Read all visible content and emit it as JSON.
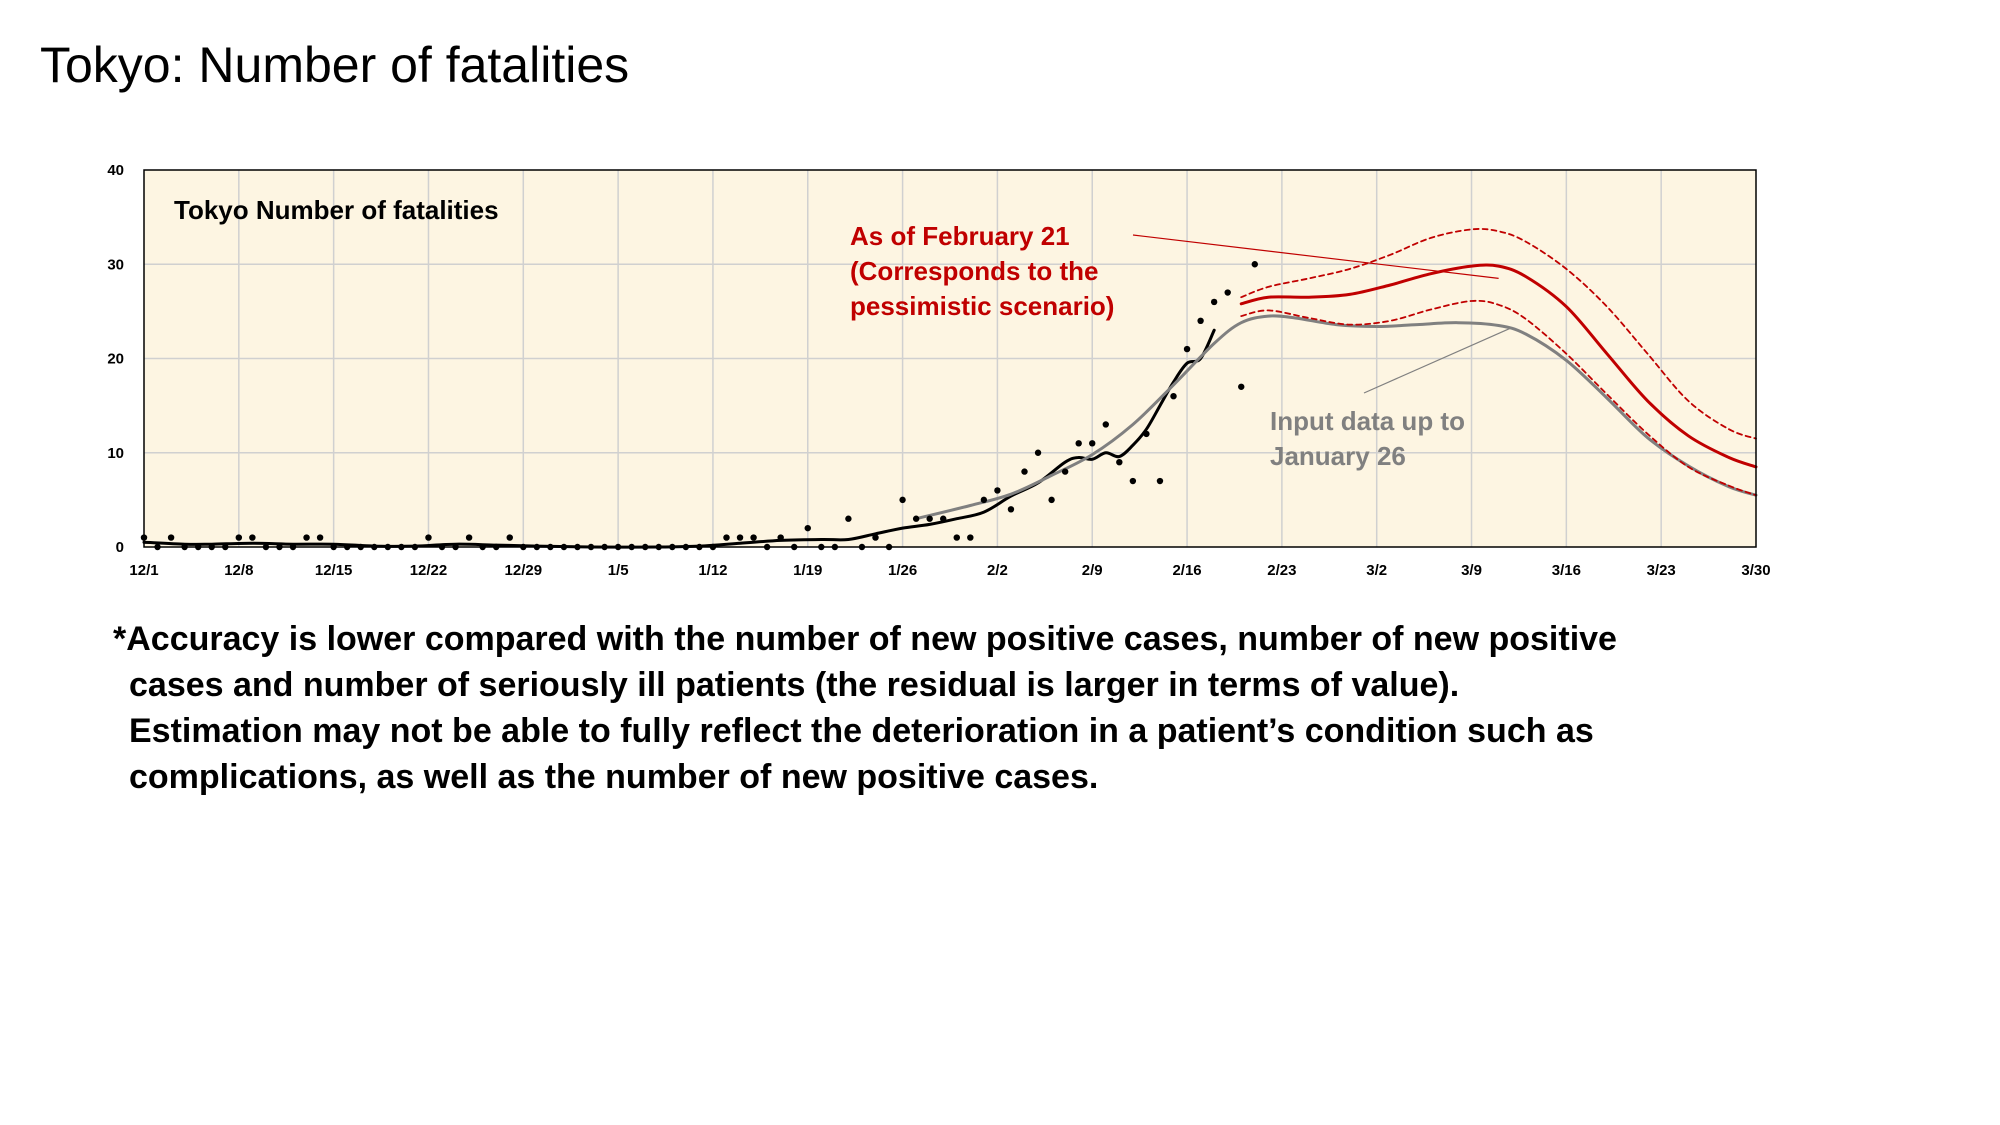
{
  "slide": {
    "title": "Tokyo: Number of fatalities",
    "note_lines": [
      "*Accuracy is lower compared with the number of new positive cases, number of new positive",
      "cases and number of seriously ill patients (the residual is larger in terms of value).",
      "Estimation may not be able to fully reflect the deterioration in a patient’s condition such as",
      "complications, as well as the number of new positive cases."
    ]
  },
  "colors": {
    "plot_background": "#fdf5e2",
    "grid": "#d0d0d0",
    "observed_points": "#000000",
    "moving_average": "#000000",
    "fit_jan26": "#808080",
    "feb21_projection": "#c00000"
  },
  "chart_data": {
    "type": "line",
    "title": "Tokyo  Number of fatalities",
    "xlabel": "",
    "ylabel": "",
    "x_range": [
      "2020-12-01",
      "2021-03-30"
    ],
    "ylim": [
      0,
      40
    ],
    "y_ticks": [
      0,
      10,
      20,
      30,
      40
    ],
    "x_tick_labels": [
      "12/1",
      "12/8",
      "12/15",
      "12/22",
      "12/29",
      "1/5",
      "1/12",
      "1/19",
      "1/26",
      "2/2",
      "2/9",
      "2/16",
      "2/23",
      "3/2",
      "3/9",
      "3/16",
      "3/23",
      "3/30"
    ],
    "grid": true,
    "annotations": [
      {
        "text_lines": [
          "As of  February 21",
          "(Corresponds to the",
          "pessimistic scenario)"
        ],
        "color": "#c00000",
        "points_to": {
          "x": "2021-03-11",
          "y": 28.5
        }
      },
      {
        "text_lines": [
          "Input data up to",
          "January 26"
        ],
        "color": "#808080",
        "points_to": {
          "x": "2021-03-12",
          "y": 23.3
        }
      }
    ],
    "series": [
      {
        "kind": "points",
        "color": "#000000",
        "points": [
          [
            "2020-12-01",
            1
          ],
          [
            "2020-12-02",
            0
          ],
          [
            "2020-12-03",
            1
          ],
          [
            "2020-12-04",
            0
          ],
          [
            "2020-12-05",
            0
          ],
          [
            "2020-12-06",
            0
          ],
          [
            "2020-12-07",
            0
          ],
          [
            "2020-12-08",
            1
          ],
          [
            "2020-12-09",
            1
          ],
          [
            "2020-12-10",
            0
          ],
          [
            "2020-12-11",
            0
          ],
          [
            "2020-12-12",
            0
          ],
          [
            "2020-12-13",
            1
          ],
          [
            "2020-12-14",
            1
          ],
          [
            "2020-12-15",
            0
          ],
          [
            "2020-12-16",
            0
          ],
          [
            "2020-12-17",
            0
          ],
          [
            "2020-12-18",
            0
          ],
          [
            "2020-12-19",
            0
          ],
          [
            "2020-12-20",
            0
          ],
          [
            "2020-12-21",
            0
          ],
          [
            "2020-12-22",
            1
          ],
          [
            "2020-12-23",
            0
          ],
          [
            "2020-12-24",
            0
          ],
          [
            "2020-12-25",
            1
          ],
          [
            "2020-12-26",
            0
          ],
          [
            "2020-12-27",
            0
          ],
          [
            "2020-12-28",
            1
          ],
          [
            "2020-12-29",
            0
          ],
          [
            "2020-12-30",
            0
          ],
          [
            "2020-12-31",
            0
          ],
          [
            "2021-01-01",
            0
          ],
          [
            "2021-01-02",
            0
          ],
          [
            "2021-01-03",
            0
          ],
          [
            "2021-01-04",
            0
          ],
          [
            "2021-01-05",
            0
          ],
          [
            "2021-01-06",
            0
          ],
          [
            "2021-01-07",
            0
          ],
          [
            "2021-01-08",
            0
          ],
          [
            "2021-01-09",
            0
          ],
          [
            "2021-01-10",
            0
          ],
          [
            "2021-01-11",
            0
          ],
          [
            "2021-01-12",
            0
          ],
          [
            "2021-01-13",
            1
          ],
          [
            "2021-01-14",
            1
          ],
          [
            "2021-01-15",
            1
          ],
          [
            "2021-01-16",
            0
          ],
          [
            "2021-01-17",
            1
          ],
          [
            "2021-01-18",
            0
          ],
          [
            "2021-01-19",
            2
          ],
          [
            "2021-01-20",
            0
          ],
          [
            "2021-01-21",
            0
          ],
          [
            "2021-01-22",
            3
          ],
          [
            "2021-01-23",
            0
          ],
          [
            "2021-01-24",
            1
          ],
          [
            "2021-01-25",
            0
          ],
          [
            "2021-01-26",
            5
          ],
          [
            "2021-01-27",
            3
          ],
          [
            "2021-01-28",
            3
          ],
          [
            "2021-01-29",
            3
          ],
          [
            "2021-01-30",
            1
          ],
          [
            "2021-01-31",
            1
          ],
          [
            "2021-02-01",
            5
          ],
          [
            "2021-02-02",
            6
          ],
          [
            "2021-02-03",
            4
          ],
          [
            "2021-02-04",
            8
          ],
          [
            "2021-02-05",
            10
          ],
          [
            "2021-02-06",
            5
          ],
          [
            "2021-02-07",
            8
          ],
          [
            "2021-02-08",
            11
          ],
          [
            "2021-02-09",
            11
          ],
          [
            "2021-02-10",
            13
          ],
          [
            "2021-02-11",
            9
          ],
          [
            "2021-02-12",
            7
          ],
          [
            "2021-02-13",
            12
          ],
          [
            "2021-02-14",
            7
          ],
          [
            "2021-02-15",
            16
          ],
          [
            "2021-02-16",
            21
          ],
          [
            "2021-02-17",
            24
          ],
          [
            "2021-02-18",
            26
          ],
          [
            "2021-02-19",
            27
          ],
          [
            "2021-02-20",
            17
          ],
          [
            "2021-02-21",
            30
          ]
        ]
      },
      {
        "kind": "line",
        "color": "#000000",
        "width": 3,
        "points": [
          [
            "2020-12-01",
            0.5
          ],
          [
            "2020-12-04",
            0.3
          ],
          [
            "2020-12-06",
            0.3
          ],
          [
            "2020-12-09",
            0.4
          ],
          [
            "2020-12-12",
            0.3
          ],
          [
            "2020-12-15",
            0.3
          ],
          [
            "2020-12-18",
            0.1
          ],
          [
            "2020-12-21",
            0.1
          ],
          [
            "2020-12-24",
            0.3
          ],
          [
            "2020-12-27",
            0.2
          ],
          [
            "2020-12-30",
            0.1
          ],
          [
            "2021-01-03",
            0
          ],
          [
            "2021-01-08",
            0
          ],
          [
            "2021-01-11",
            0.1
          ],
          [
            "2021-01-14",
            0.4
          ],
          [
            "2021-01-17",
            0.7
          ],
          [
            "2021-01-20",
            0.8
          ],
          [
            "2021-01-22",
            0.8
          ],
          [
            "2021-01-24",
            1.4
          ],
          [
            "2021-01-26",
            2.0
          ],
          [
            "2021-01-28",
            2.4
          ],
          [
            "2021-01-30",
            3.0
          ],
          [
            "2021-02-01",
            3.7
          ],
          [
            "2021-02-03",
            5.4
          ],
          [
            "2021-02-05",
            6.8
          ],
          [
            "2021-02-07",
            9.0
          ],
          [
            "2021-02-08",
            9.5
          ],
          [
            "2021-02-09",
            9.3
          ],
          [
            "2021-02-10",
            10.0
          ],
          [
            "2021-02-11",
            9.6
          ],
          [
            "2021-02-12",
            10.8
          ],
          [
            "2021-02-13",
            12.5
          ],
          [
            "2021-02-14",
            15.0
          ],
          [
            "2021-02-15",
            17.5
          ],
          [
            "2021-02-16",
            19.5
          ],
          [
            "2021-02-17",
            20.0
          ],
          [
            "2021-02-18",
            23.0
          ]
        ]
      },
      {
        "kind": "line",
        "color": "#808080",
        "width": 3,
        "points": [
          [
            "2021-01-27",
            3.0
          ],
          [
            "2021-01-31",
            4.4
          ],
          [
            "2021-02-03",
            5.6
          ],
          [
            "2021-02-06",
            7.6
          ],
          [
            "2021-02-09",
            9.8
          ],
          [
            "2021-02-12",
            13.0
          ],
          [
            "2021-02-15",
            17.2
          ],
          [
            "2021-02-18",
            21.6
          ],
          [
            "2021-02-20",
            23.8
          ],
          [
            "2021-02-22",
            24.5
          ],
          [
            "2021-02-24",
            24.3
          ],
          [
            "2021-02-27",
            23.6
          ],
          [
            "2021-03-02",
            23.4
          ],
          [
            "2021-03-05",
            23.6
          ],
          [
            "2021-03-08",
            23.8
          ],
          [
            "2021-03-11",
            23.5
          ],
          [
            "2021-03-13",
            22.6
          ],
          [
            "2021-03-16",
            19.8
          ],
          [
            "2021-03-19",
            15.8
          ],
          [
            "2021-03-22",
            11.6
          ],
          [
            "2021-03-25",
            8.6
          ],
          [
            "2021-03-28",
            6.4
          ],
          [
            "2021-03-30",
            5.5
          ]
        ]
      },
      {
        "kind": "line",
        "color": "#c00000",
        "width": 3,
        "points": [
          [
            "2021-02-20",
            25.8
          ],
          [
            "2021-02-22",
            26.5
          ],
          [
            "2021-02-25",
            26.5
          ],
          [
            "2021-02-28",
            26.8
          ],
          [
            "2021-03-03",
            27.8
          ],
          [
            "2021-03-06",
            29.0
          ],
          [
            "2021-03-09",
            29.8
          ],
          [
            "2021-03-11",
            29.8
          ],
          [
            "2021-03-13",
            28.7
          ],
          [
            "2021-03-16",
            25.5
          ],
          [
            "2021-03-19",
            20.5
          ],
          [
            "2021-03-22",
            15.5
          ],
          [
            "2021-03-25",
            11.8
          ],
          [
            "2021-03-28",
            9.5
          ],
          [
            "2021-03-30",
            8.5
          ]
        ]
      },
      {
        "kind": "line",
        "color": "#c00000",
        "width": 1.8,
        "dashed": true,
        "points": [
          [
            "2021-02-20",
            26.5
          ],
          [
            "2021-02-22",
            27.6
          ],
          [
            "2021-02-25",
            28.5
          ],
          [
            "2021-02-28",
            29.5
          ],
          [
            "2021-03-03",
            31.0
          ],
          [
            "2021-03-06",
            32.8
          ],
          [
            "2021-03-09",
            33.7
          ],
          [
            "2021-03-11",
            33.5
          ],
          [
            "2021-03-13",
            32.4
          ],
          [
            "2021-03-16",
            29.5
          ],
          [
            "2021-03-19",
            25.5
          ],
          [
            "2021-03-22",
            20.5
          ],
          [
            "2021-03-25",
            15.5
          ],
          [
            "2021-03-28",
            12.5
          ],
          [
            "2021-03-30",
            11.5
          ]
        ]
      },
      {
        "kind": "line",
        "color": "#c00000",
        "width": 1.8,
        "dashed": true,
        "points": [
          [
            "2021-02-20",
            24.5
          ],
          [
            "2021-02-22",
            25.1
          ],
          [
            "2021-02-25",
            24.3
          ],
          [
            "2021-02-28",
            23.6
          ],
          [
            "2021-03-03",
            24.0
          ],
          [
            "2021-03-06",
            25.2
          ],
          [
            "2021-03-09",
            26.1
          ],
          [
            "2021-03-11",
            25.7
          ],
          [
            "2021-03-13",
            24.2
          ],
          [
            "2021-03-16",
            20.5
          ],
          [
            "2021-03-19",
            16.2
          ],
          [
            "2021-03-22",
            12.0
          ],
          [
            "2021-03-25",
            8.5
          ],
          [
            "2021-03-28",
            6.5
          ],
          [
            "2021-03-30",
            5.5
          ]
        ]
      }
    ]
  }
}
